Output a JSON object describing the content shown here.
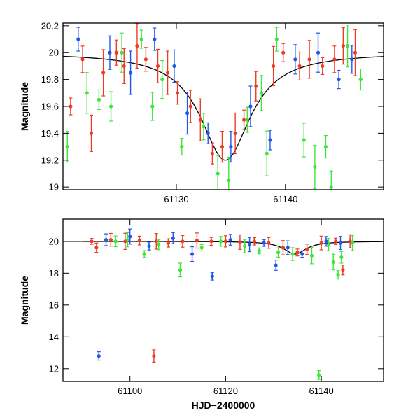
{
  "figure": {
    "xlabel": "HJD−2400000"
  },
  "chart_data": [
    {
      "type": "scatter",
      "ylabel": "Magnitude",
      "xlim": [
        61119.6,
        61149.0
      ],
      "ylim": [
        20.22,
        18.98
      ],
      "y_inverted": true,
      "x_ticks": [
        61130,
        61140
      ],
      "x_tick_labels": [
        "61130",
        "61140"
      ],
      "y_ticks": [
        19,
        19.2,
        19.4,
        19.6,
        19.8,
        20,
        20.2
      ],
      "y_tick_labels": [
        "19",
        "19.2",
        "19.4",
        "19.6",
        "19.8",
        "20",
        "20.2"
      ],
      "model_curve": {
        "color": "#000000",
        "baseline": 20.0,
        "peak_x": 61134.5,
        "peak_y": 19.2,
        "width_days": 2.8
      },
      "series": [
        {
          "color": "#ef3b24",
          "x": [
            61120.3,
            61121.4,
            61122.2,
            61123.3,
            61124.5,
            61125.2,
            61126.4,
            61127.2,
            61128.3,
            61129.2,
            61130.1,
            61131.3,
            61132.2,
            61133.3,
            61134.2,
            61135.4,
            61136.2,
            61137.3,
            61138.9,
            61139.8,
            61141.3,
            61142.2,
            61143.4,
            61144.5,
            61145.3,
            61146.4
          ],
          "y": [
            19.6,
            19.95,
            19.4,
            19.85,
            20.0,
            19.9,
            20.05,
            19.95,
            19.9,
            19.85,
            19.7,
            19.6,
            19.5,
            19.25,
            19.3,
            19.4,
            19.5,
            19.75,
            19.9,
            20.0,
            19.9,
            19.95,
            19.9,
            19.95,
            20.05,
            20.0
          ]
        },
        {
          "color": "#1f57e8",
          "x": [
            61121.0,
            61123.9,
            61125.8,
            61128.0,
            61129.8,
            61131.0,
            61132.9,
            61135.0,
            61136.8,
            61138.6,
            61140.9,
            61143.0,
            61144.9,
            61146.1
          ],
          "y": [
            20.1,
            20.0,
            19.85,
            20.1,
            19.9,
            19.55,
            19.4,
            19.3,
            19.6,
            19.35,
            19.95,
            20.0,
            19.8,
            19.95
          ]
        },
        {
          "color": "#3fe53a",
          "x": [
            61120.0,
            61121.8,
            61122.9,
            61124.0,
            61125.0,
            61126.8,
            61127.8,
            61128.7,
            61130.5,
            61132.5,
            61133.8,
            61134.8,
            61136.5,
            61137.8,
            61138.3,
            61139.2,
            61141.7,
            61142.7,
            61143.7,
            61144.2,
            61145.7,
            61146.9
          ],
          "y": [
            19.3,
            19.7,
            19.65,
            19.6,
            20.0,
            20.1,
            19.6,
            19.8,
            19.3,
            19.45,
            19.1,
            19.05,
            19.5,
            19.7,
            19.25,
            20.1,
            19.35,
            19.15,
            19.3,
            19.0,
            20.05,
            19.8
          ]
        }
      ]
    },
    {
      "type": "scatter",
      "ylabel": "Magnitude",
      "xlim": [
        61086.0,
        61153.0
      ],
      "ylim": [
        21.4,
        11.2
      ],
      "y_inverted": true,
      "x_ticks": [
        61100,
        61120,
        61140
      ],
      "x_tick_labels": [
        "61100",
        "61120",
        "61140"
      ],
      "y_ticks": [
        12,
        14,
        16,
        18,
        20
      ],
      "y_tick_labels": [
        "12",
        "14",
        "16",
        "18",
        "20"
      ],
      "model_curve": {
        "color": "#000000",
        "baseline": 20.0,
        "peak_x": 61134.5,
        "peak_y": 19.2,
        "width_days": 2.8
      },
      "series": [
        {
          "color": "#ef3b24",
          "x": [
            61092.0,
            61093.0,
            61096.0,
            61099.0,
            61102.0,
            61105.0,
            61105.5,
            61108.0,
            61111.0,
            61114.0,
            61117.0,
            61120.0,
            61123.0,
            61126.0,
            61129.0,
            61132.0,
            61135.0,
            61137.0,
            61140.0,
            61143.0,
            61144.5,
            61146.0
          ],
          "y": [
            20.0,
            19.6,
            20.1,
            20.0,
            20.05,
            12.8,
            20.0,
            19.9,
            20.0,
            20.05,
            20.0,
            20.0,
            19.95,
            20.0,
            19.9,
            19.6,
            19.3,
            19.5,
            19.9,
            20.0,
            18.2,
            20.0
          ]
        },
        {
          "color": "#1f57e8",
          "x": [
            61093.5,
            61095.0,
            61100.0,
            61104.0,
            61109.0,
            61113.0,
            61117.2,
            61121.0,
            61125.0,
            61128.0,
            61130.5,
            61133.0,
            61136.0,
            61141.0,
            61144.0
          ],
          "y": [
            12.8,
            20.1,
            20.3,
            19.7,
            20.2,
            19.2,
            17.8,
            20.1,
            19.8,
            19.9,
            18.5,
            19.6,
            19.2,
            20.0,
            19.9
          ]
        },
        {
          "color": "#3fe53a",
          "x": [
            61097.0,
            61099.5,
            61103.0,
            61106.0,
            61110.5,
            61115.0,
            61119.0,
            61124.0,
            61127.0,
            61131.0,
            61134.0,
            61138.0,
            61139.5,
            61141.5,
            61142.5,
            61143.5,
            61144.2,
            61146.5
          ],
          "y": [
            20.0,
            20.1,
            19.2,
            19.8,
            18.2,
            19.6,
            20.0,
            19.7,
            19.4,
            19.3,
            19.2,
            19.1,
            11.6,
            19.8,
            18.7,
            17.9,
            19.0,
            19.9
          ]
        }
      ]
    }
  ]
}
